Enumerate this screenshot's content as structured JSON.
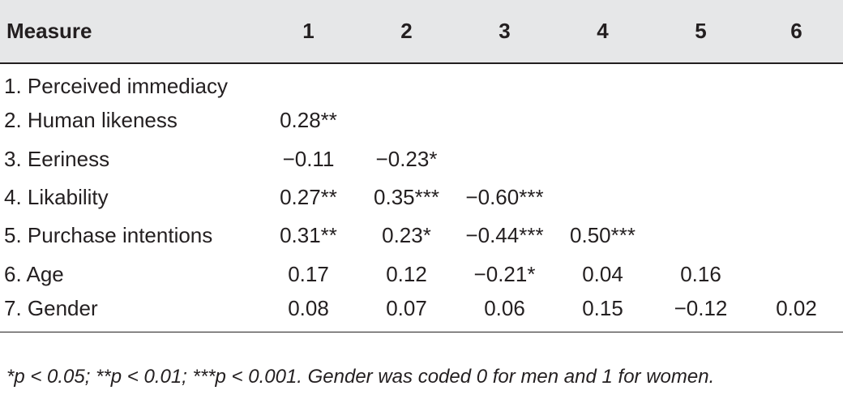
{
  "table": {
    "headers": [
      "Measure",
      "1",
      "2",
      "3",
      "4",
      "5",
      "6"
    ],
    "rows": [
      {
        "measure": "1. Perceived immediacy",
        "values": [
          "",
          "",
          "",
          "",
          "",
          ""
        ]
      },
      {
        "measure": "2. Human likeness",
        "values": [
          "0.28**",
          "",
          "",
          "",
          "",
          ""
        ]
      },
      {
        "measure": "3. Eeriness",
        "values": [
          "−0.11",
          "−0.23*",
          "",
          "",
          "",
          ""
        ]
      },
      {
        "measure": "4. Likability",
        "values": [
          "0.27**",
          "0.35***",
          "−0.60***",
          "",
          "",
          ""
        ]
      },
      {
        "measure": "5. Purchase intentions",
        "values": [
          "0.31**",
          "0.23*",
          "−0.44***",
          "0.50***",
          "",
          ""
        ]
      },
      {
        "measure": "6. Age",
        "values": [
          "0.17",
          "0.12",
          "−0.21*",
          "0.04",
          "0.16",
          ""
        ]
      },
      {
        "measure": "7. Gender",
        "values": [
          "0.08",
          "0.07",
          "0.06",
          "0.15",
          "−0.12",
          "0.02"
        ]
      }
    ]
  },
  "footnote": "*p < 0.05; **p < 0.01; ***p < 0.001. Gender was coded 0 for men and 1 for women.",
  "colors": {
    "header_background": "#e6e7e8",
    "text": "#231f20"
  }
}
